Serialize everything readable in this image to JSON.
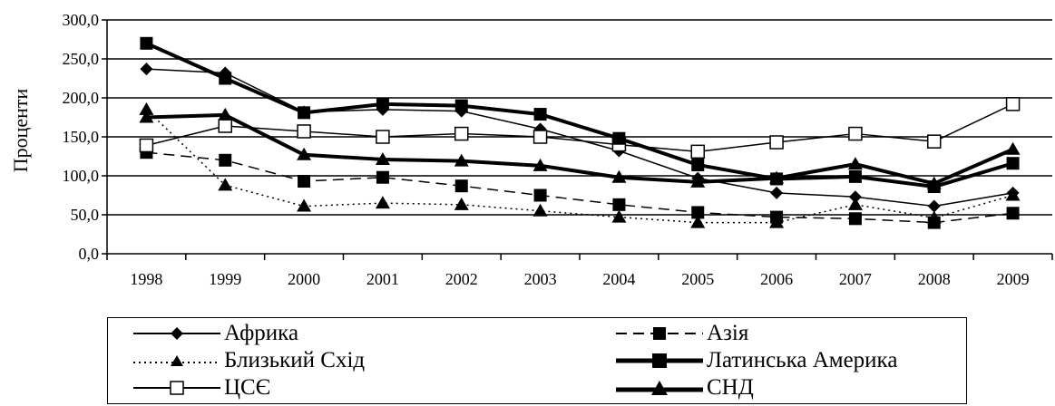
{
  "chart_data": {
    "type": "line",
    "title": "",
    "xlabel": "",
    "ylabel": "Проценти",
    "x": [
      "1998",
      "1999",
      "2000",
      "2001",
      "2002",
      "2003",
      "2004",
      "2005",
      "2006",
      "2007",
      "2008",
      "2009"
    ],
    "ylim": [
      0,
      300
    ],
    "yticks": [
      "0,0",
      "50,0",
      "100,0",
      "150,0",
      "200,0",
      "250,0",
      "300,0"
    ],
    "grid": "horizontal",
    "legend_position": "bottom",
    "series": [
      {
        "name": "Африка",
        "values": [
          237,
          232,
          182,
          185,
          183,
          160,
          132,
          97,
          78,
          73,
          61,
          78
        ],
        "style": "thin-solid",
        "marker": "diamond",
        "color": "#000000"
      },
      {
        "name": "Азія",
        "values": [
          130,
          120,
          93,
          98,
          87,
          75,
          63,
          53,
          47,
          45,
          40,
          52
        ],
        "style": "dashed",
        "marker": "square",
        "color": "#000000"
      },
      {
        "name": "Близький Схід",
        "values": [
          185,
          88,
          61,
          65,
          63,
          55,
          47,
          40,
          40,
          63,
          46,
          75
        ],
        "style": "dotted",
        "marker": "triangle",
        "color": "#000000"
      },
      {
        "name": "Латинська Америка",
        "values": [
          270,
          225,
          181,
          192,
          190,
          179,
          148,
          114,
          96,
          99,
          86,
          116
        ],
        "style": "thick-solid",
        "marker": "square",
        "color": "#000000"
      },
      {
        "name": "ЦСЄ",
        "values": [
          139,
          164,
          157,
          150,
          154,
          150,
          140,
          131,
          143,
          154,
          144,
          192
        ],
        "style": "thin-solid",
        "marker": "open-square",
        "color": "#000000"
      },
      {
        "name": "СНД",
        "values": [
          175,
          178,
          127,
          121,
          119,
          113,
          98,
          92,
          97,
          115,
          90,
          134
        ],
        "style": "thick-solid",
        "marker": "triangle",
        "color": "#000000"
      }
    ]
  }
}
